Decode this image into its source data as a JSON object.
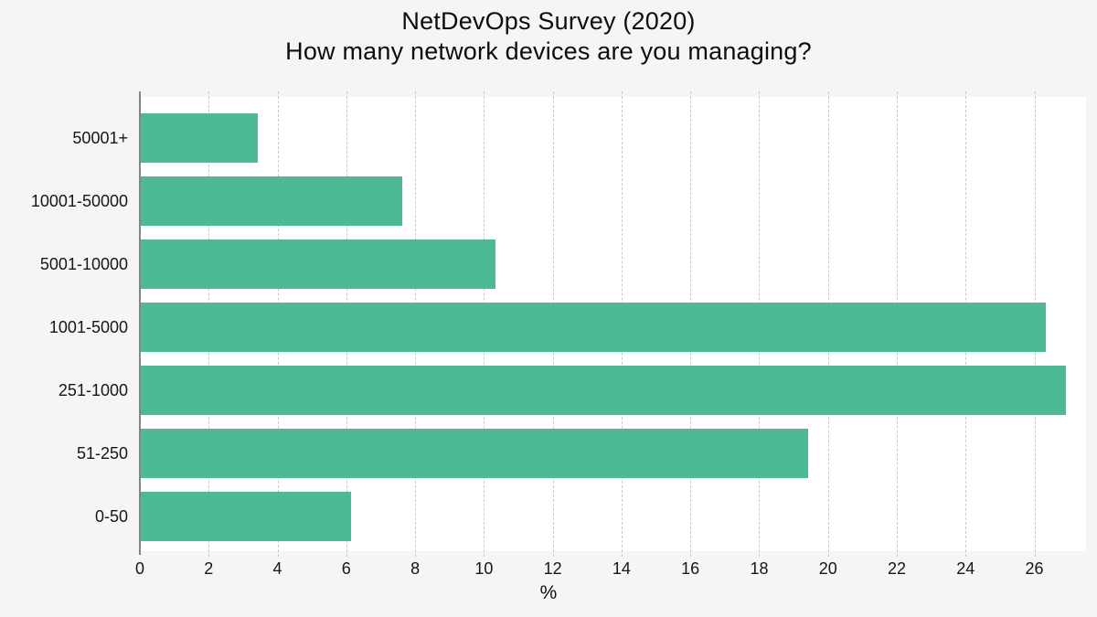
{
  "figure": {
    "title": "NetDevOps Survey (2020)",
    "subtitle": "How many network devices are you managing?"
  },
  "chart_data": {
    "type": "bar",
    "orientation": "horizontal",
    "title": "NetDevOps Survey (2020)",
    "subtitle": "How many network devices are you managing?",
    "categories": [
      "50001+",
      "10001-50000",
      "5001-10000",
      "1001-5000",
      "251-1000",
      "51-250",
      "0-50"
    ],
    "values": [
      3.4,
      7.6,
      10.3,
      26.3,
      26.9,
      19.4,
      6.1
    ],
    "xlabel": "%",
    "xlim": [
      0,
      27.5
    ],
    "xticks": [
      0,
      2,
      4,
      6,
      8,
      10,
      12,
      14,
      16,
      18,
      20,
      22,
      24,
      26
    ],
    "grid": "vertical-dashed",
    "legend": "none",
    "colors": {
      "bar": "#4db996",
      "plot_background": "#ffffff",
      "figure_background": "#f5f5f5",
      "axis_line": "#858585",
      "gridline": "#c9c9c9",
      "text": "#111111"
    }
  }
}
